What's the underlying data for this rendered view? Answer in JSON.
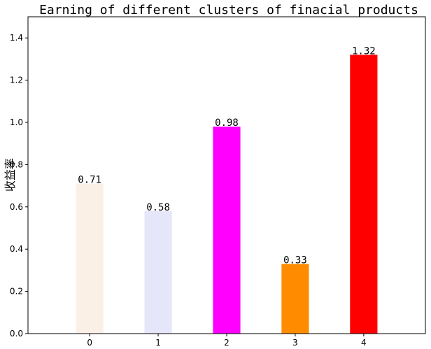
{
  "chart_data": {
    "type": "bar",
    "title": "Earning of different clusters of finacial products",
    "xlabel": "",
    "ylabel": "收益率",
    "categories": [
      "0",
      "1",
      "2",
      "3",
      "4"
    ],
    "values": [
      0.71,
      0.58,
      0.98,
      0.33,
      1.32
    ],
    "value_labels": [
      "0.71",
      "0.58",
      "0.98",
      "0.33",
      "1.32"
    ],
    "colors": [
      "#faf0e6",
      "#e6e6fa",
      "#ff00ff",
      "#ff8c00",
      "#ff0000"
    ],
    "ylim": [
      0,
      1.5
    ],
    "yticks": [
      0.0,
      0.2,
      0.4,
      0.6,
      0.8,
      1.0,
      1.2,
      1.4
    ],
    "ytick_labels": [
      "0.0",
      "0.2",
      "0.4",
      "0.6",
      "0.8",
      "1.0",
      "1.2",
      "1.4"
    ],
    "grid": false,
    "legend": "none"
  }
}
